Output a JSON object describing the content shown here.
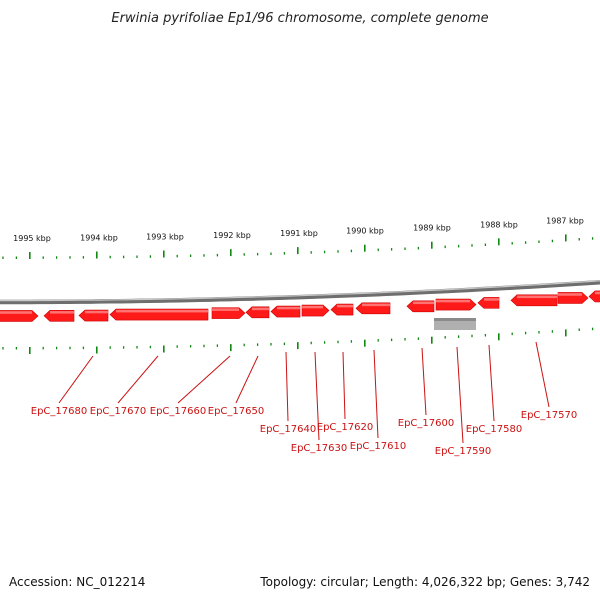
{
  "title": "Erwinia pyrifoliae Ep1/96 chromosome, complete genome",
  "footer": {
    "accession": "Accession: NC_012214",
    "summary": "Topology: circular; Length: 4,026,322 bp; Genes: 3,742"
  },
  "colors": {
    "gene": "#ff1a1a",
    "tick": "#118811",
    "label": "#cc1111",
    "backbone": "#8c8c8c",
    "feature_gray": "#b0b0b0"
  },
  "scale_labels": [
    "1995 kbp",
    "1994 kbp",
    "1993 kbp",
    "1992 kbp",
    "1991 kbp",
    "1990 kbp",
    "1989 kbp",
    "1988 kbp",
    "1987 kbp"
  ],
  "gene_labels": [
    "EpC_17680",
    "EpC_17670",
    "EpC_17660",
    "EpC_17650",
    "EpC_17640",
    "EpC_17630",
    "EpC_17620",
    "EpC_17610",
    "EpC_17600",
    "EpC_17590",
    "EpC_17580",
    "EpC_17570"
  ]
}
